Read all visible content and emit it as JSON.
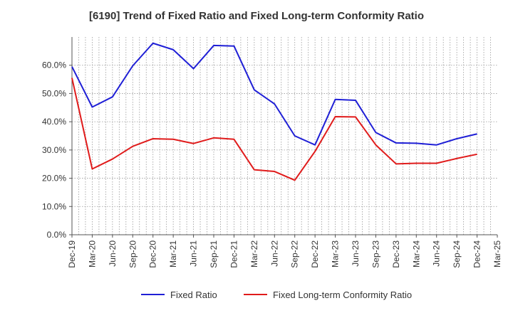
{
  "chart_data": {
    "type": "line",
    "title": "[6190]  Trend of Fixed Ratio and Fixed Long-term Conformity Ratio",
    "xlabel": "",
    "ylabel": "",
    "x": [
      "Dec-19",
      "Mar-20",
      "Jun-20",
      "Sep-20",
      "Dec-20",
      "Mar-21",
      "Jun-21",
      "Sep-21",
      "Dec-21",
      "Mar-22",
      "Jun-22",
      "Sep-22",
      "Dec-22",
      "Mar-23",
      "Jun-23",
      "Sep-23",
      "Dec-23",
      "Mar-24",
      "Jun-24",
      "Sep-24",
      "Dec-24",
      "Mar-25"
    ],
    "ylim": [
      0,
      70
    ],
    "yticks": [
      0,
      10,
      20,
      30,
      40,
      50,
      60
    ],
    "ytick_labels": [
      "0.0%",
      "10.0%",
      "20.0%",
      "30.0%",
      "40.0%",
      "50.0%",
      "60.0%"
    ],
    "grid": true,
    "legend_position": "bottom",
    "series": [
      {
        "name": "Fixed Ratio",
        "color": "#1f1fd6",
        "values": [
          59.5,
          45.2,
          48.8,
          59.8,
          67.8,
          65.5,
          58.8,
          67.0,
          66.8,
          51.3,
          46.3,
          35.0,
          31.8,
          47.9,
          47.6,
          36.2,
          32.5,
          32.4,
          31.8,
          34.0,
          35.7,
          null
        ]
      },
      {
        "name": "Fixed Long-term Conformity Ratio",
        "color": "#e01b1b",
        "values": [
          55.5,
          23.3,
          26.8,
          31.3,
          34.0,
          33.8,
          32.3,
          34.3,
          33.8,
          23.0,
          22.4,
          19.3,
          29.5,
          41.8,
          41.7,
          31.8,
          25.1,
          25.3,
          25.3,
          27.0,
          28.5,
          null
        ]
      }
    ]
  }
}
